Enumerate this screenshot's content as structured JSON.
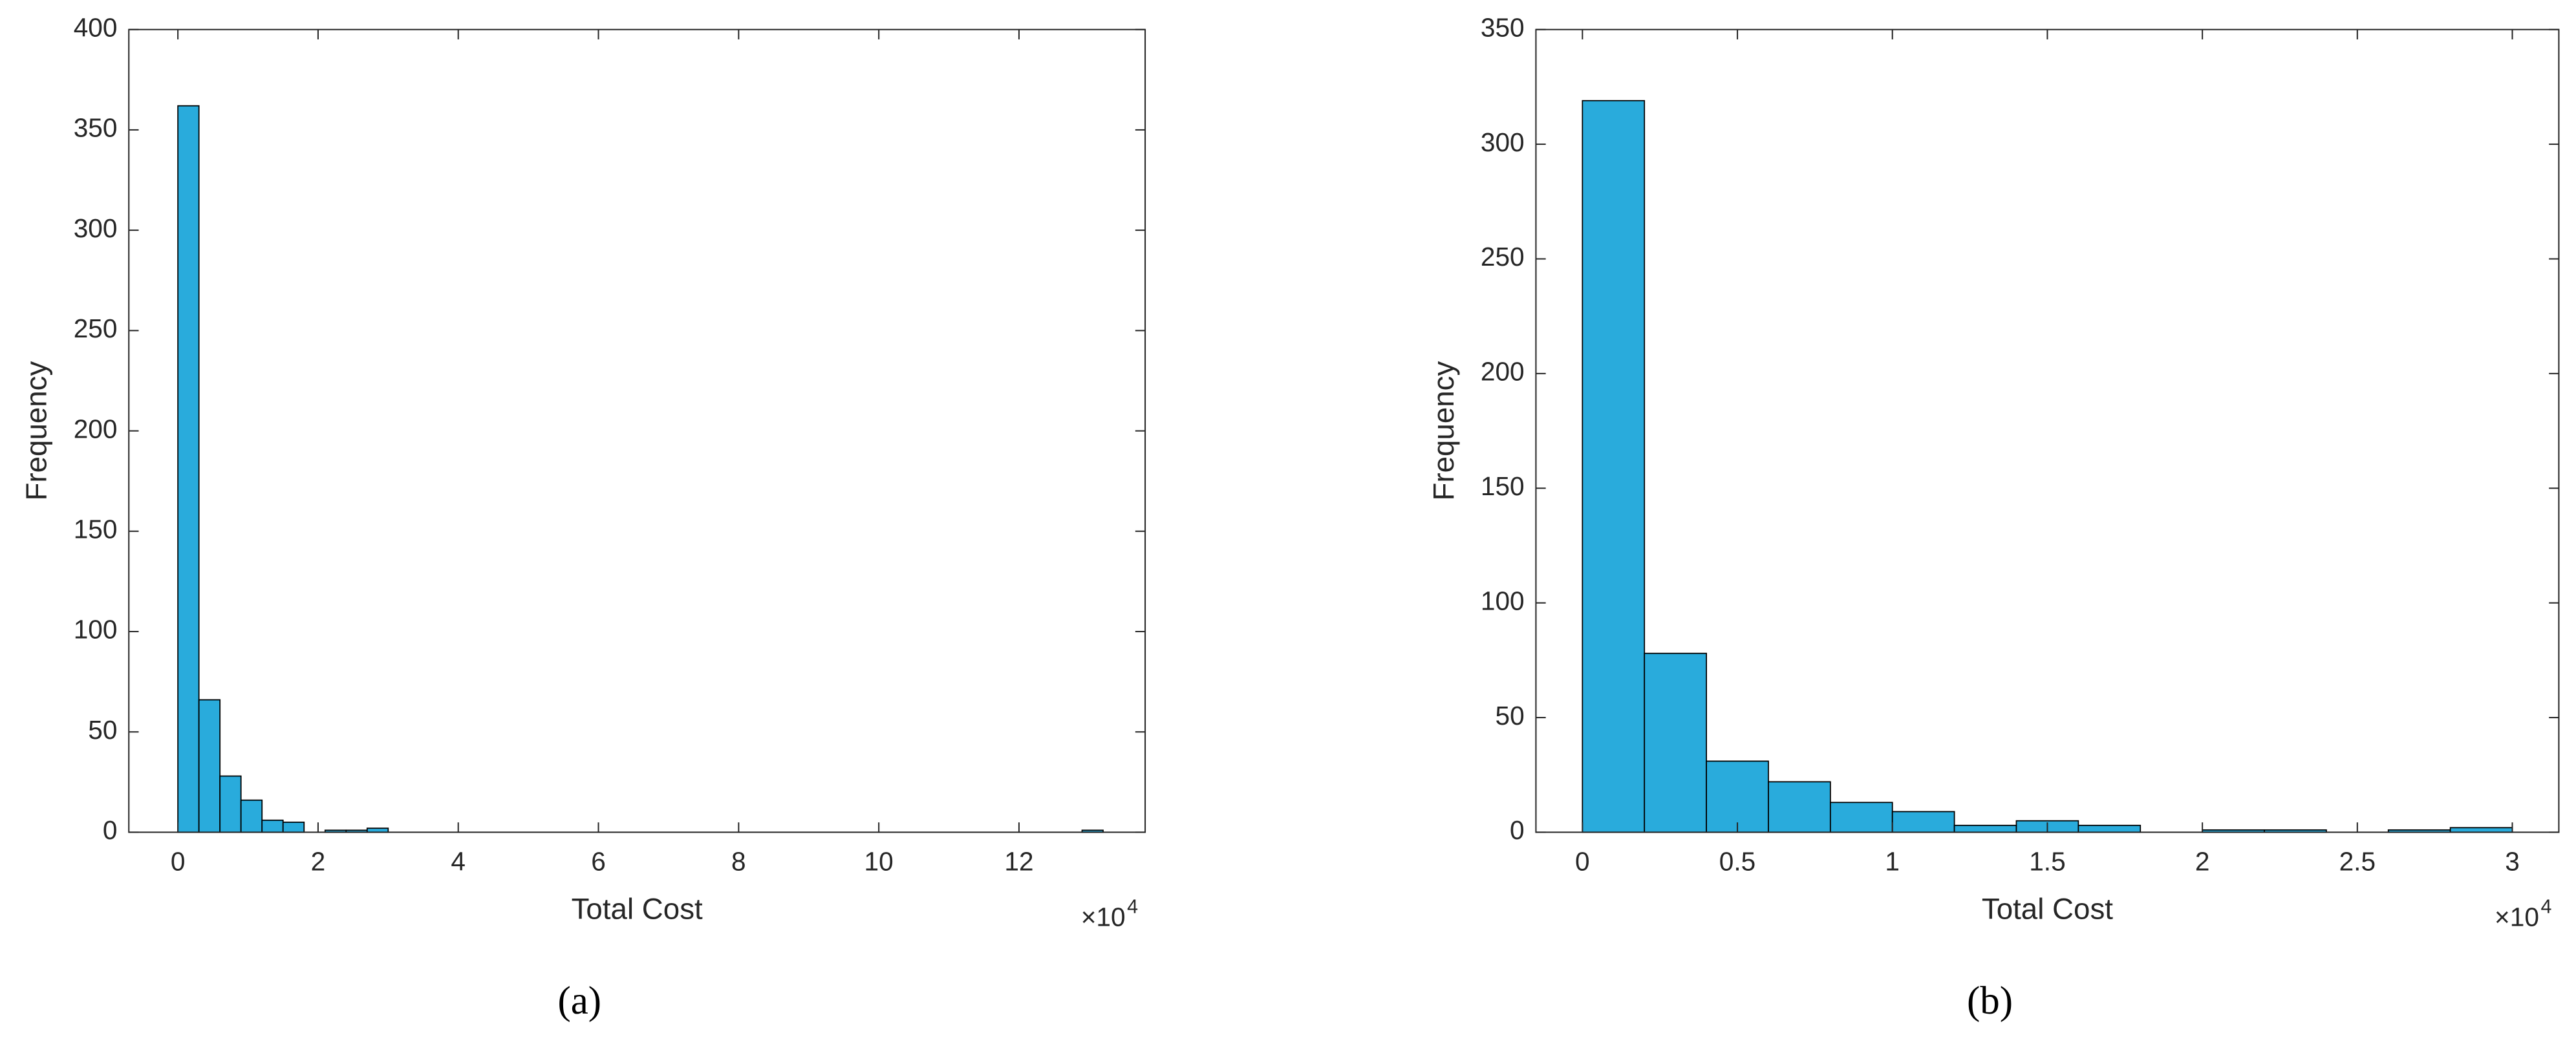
{
  "chart_data": [
    {
      "type": "histogram",
      "panel_label": "(a)",
      "x_label": "Total Cost",
      "y_label": "Frequency",
      "x_multiplier": {
        "base": "×10",
        "exponent": "4"
      },
      "color": "#29abdc",
      "grid": false,
      "bins": [
        0,
        0.3,
        0.6,
        0.9,
        1.2,
        1.5,
        1.8,
        2.1,
        2.4,
        2.7,
        3.0,
        3.3,
        3.6,
        3.9,
        4.2,
        4.5,
        4.8,
        5.1,
        5.4,
        5.7,
        6.0,
        6.3,
        6.6,
        6.9,
        7.2,
        7.5,
        7.8,
        8.1,
        8.4,
        8.7,
        9.0,
        9.3,
        9.6,
        9.9,
        10.2,
        10.5,
        10.8,
        11.1,
        11.4,
        11.7,
        12.0,
        12.3,
        12.6,
        12.9,
        13.2
      ],
      "counts": [
        362,
        66,
        28,
        16,
        6,
        5,
        0,
        1,
        1,
        2,
        0,
        0,
        0,
        0,
        0,
        0,
        0,
        0,
        0,
        0,
        0,
        0,
        0,
        0,
        0,
        0,
        0,
        0,
        0,
        0,
        0,
        0,
        0,
        0,
        0,
        0,
        0,
        0,
        0,
        0,
        0,
        0,
        0,
        1
      ],
      "xlim": [
        -0.7,
        13.8
      ],
      "xticks": [
        0,
        2,
        4,
        6,
        8,
        10,
        12
      ],
      "ylim": [
        0,
        400
      ],
      "yticks": [
        0,
        50,
        100,
        150,
        200,
        250,
        300,
        350,
        400
      ]
    },
    {
      "type": "histogram",
      "panel_label": "(b)",
      "x_label": "Total Cost",
      "y_label": "Frequency",
      "x_multiplier": {
        "base": "×10",
        "exponent": "4"
      },
      "color": "#29abdc",
      "grid": false,
      "bins": [
        0,
        0.2,
        0.4,
        0.6,
        0.8,
        1.0,
        1.2,
        1.4,
        1.6,
        1.8,
        2.0,
        2.2,
        2.4,
        2.6,
        2.8,
        3.0
      ],
      "counts": [
        319,
        78,
        31,
        22,
        13,
        9,
        3,
        5,
        3,
        0,
        1,
        1,
        0,
        1,
        2
      ],
      "xlim": [
        -0.15,
        3.15
      ],
      "xticks": [
        0,
        0.5,
        1,
        1.5,
        2,
        2.5,
        3
      ],
      "ylim": [
        0,
        350
      ],
      "yticks": [
        0,
        50,
        100,
        150,
        200,
        250,
        300,
        350
      ]
    }
  ]
}
